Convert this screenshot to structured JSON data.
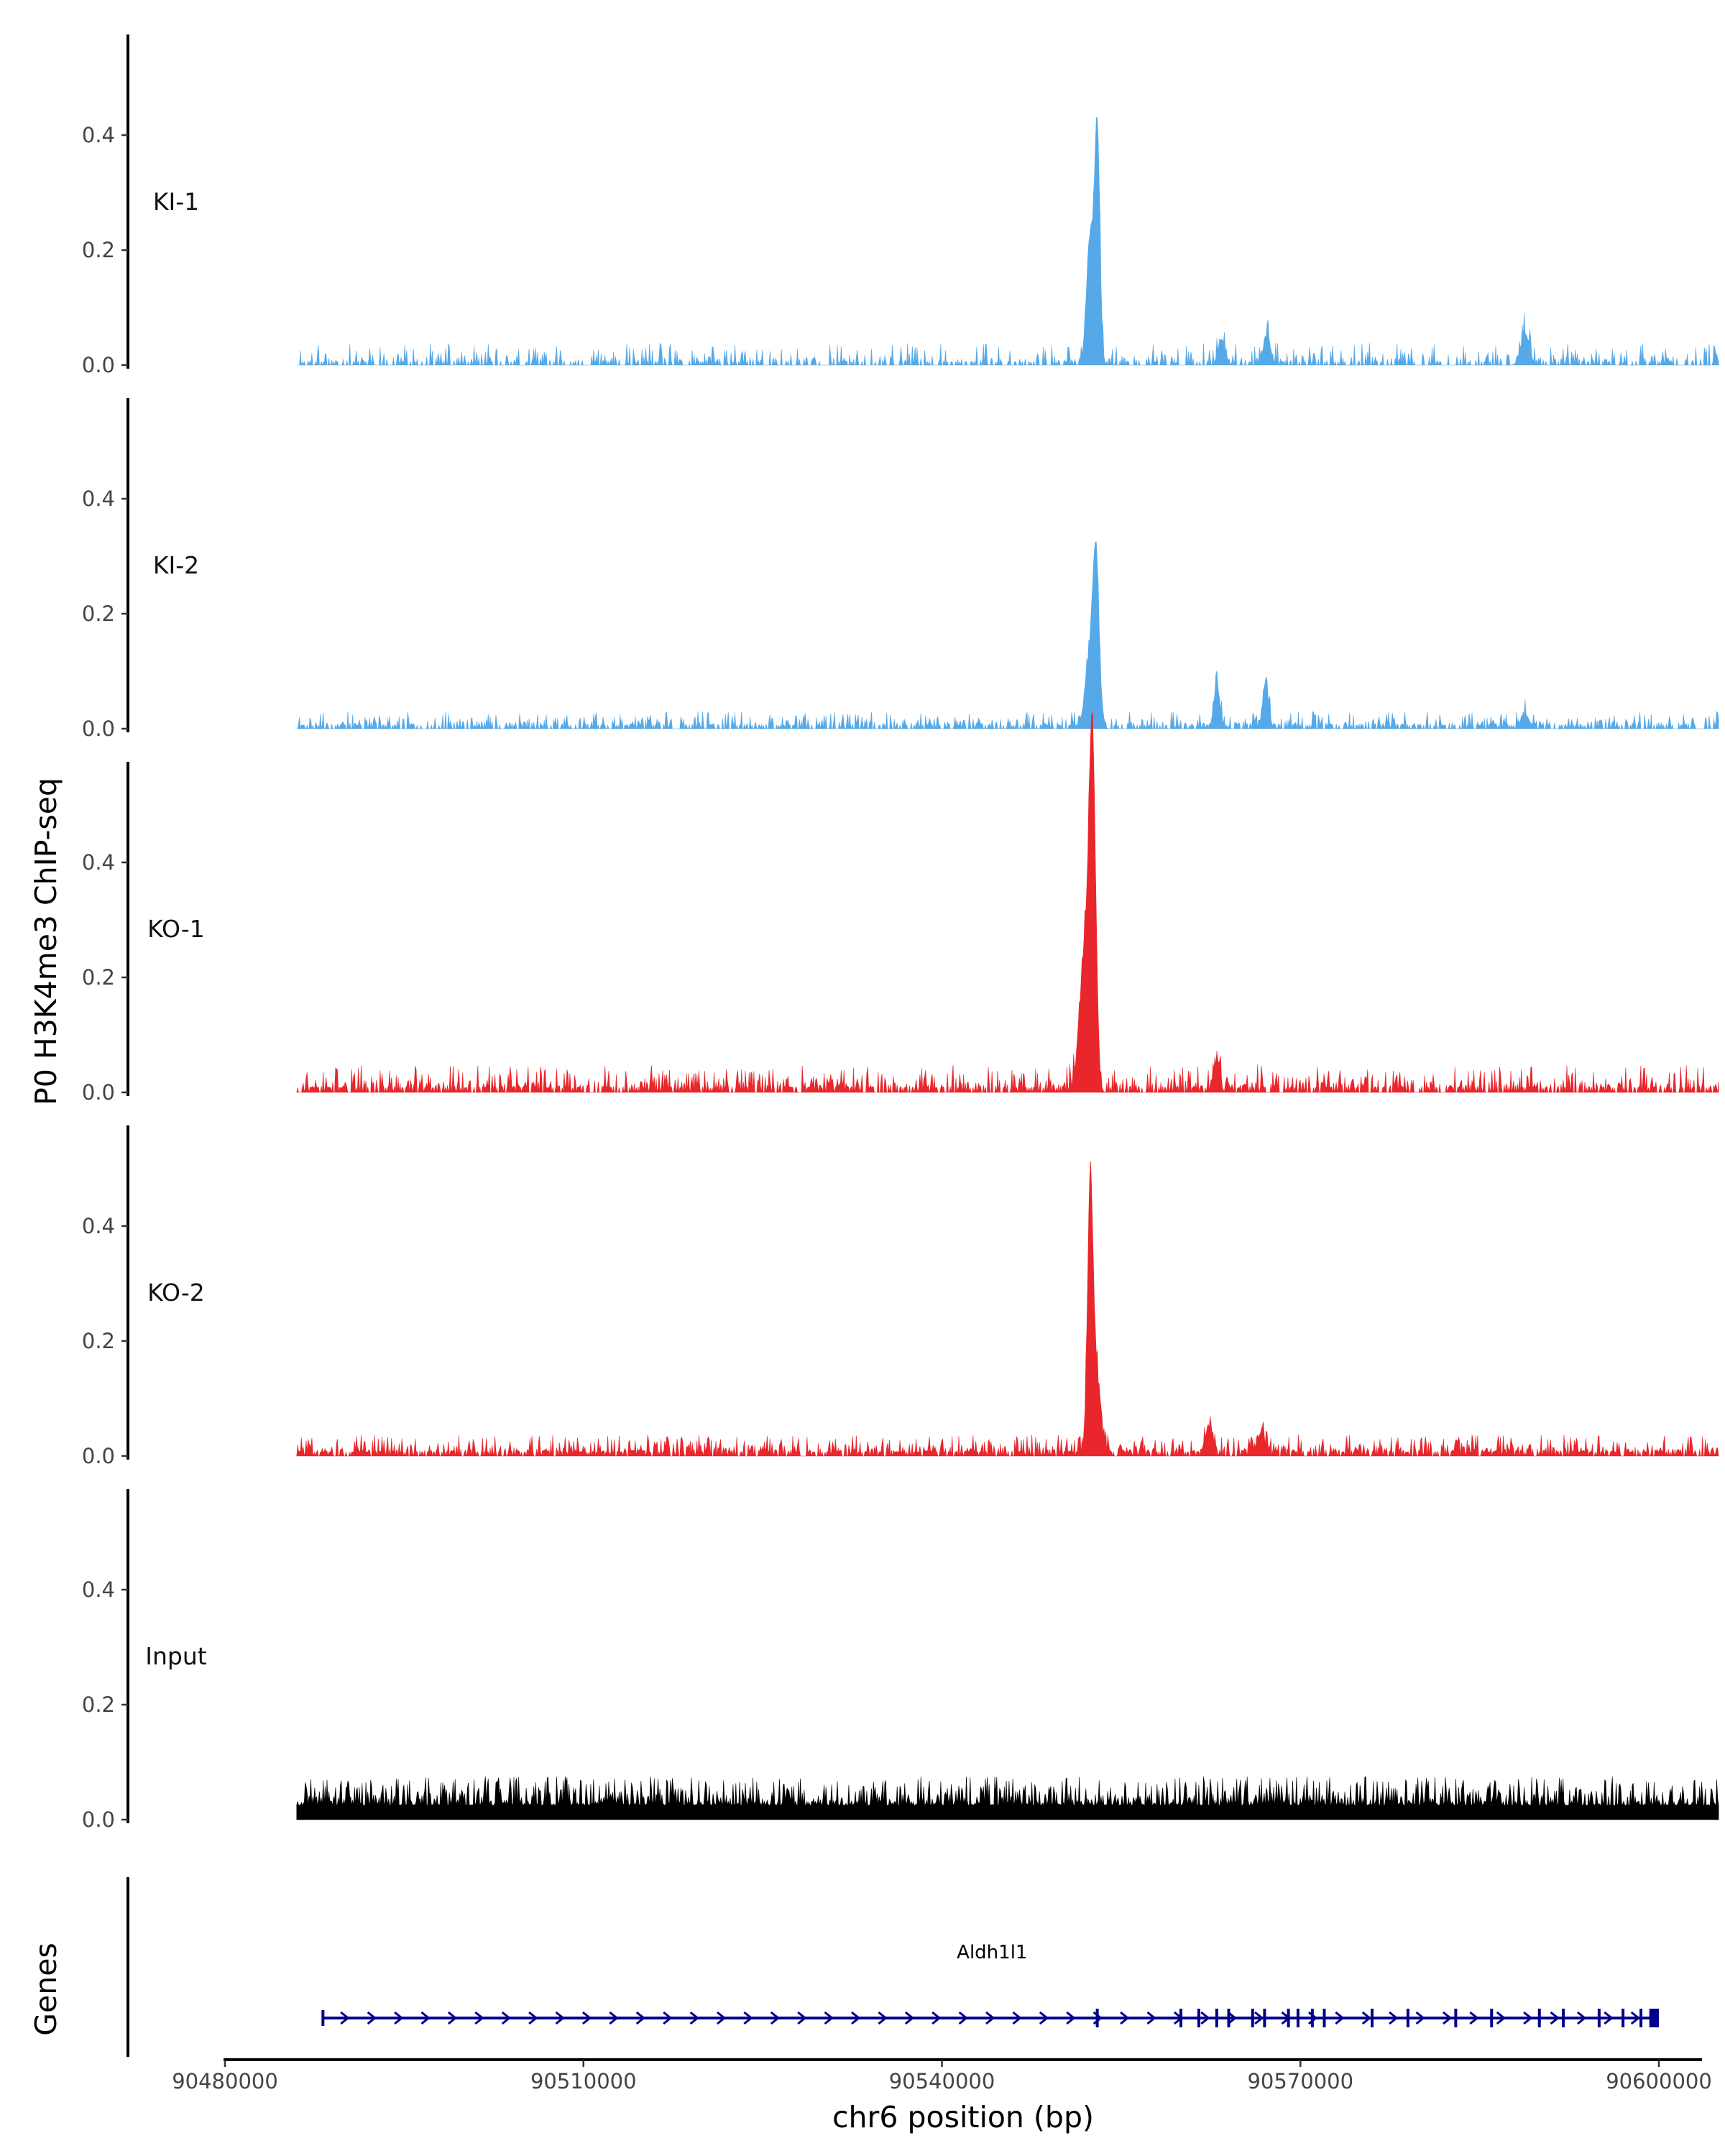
{
  "chart_data": {
    "type": "area",
    "ylabel": "P0 H3K4me3 ChIP-seq",
    "xlabel": "chr6 position (bp)",
    "ylim": [
      0,
      0.55
    ],
    "y_ticks": [
      "0.0",
      "0.2",
      "0.4"
    ],
    "xlim": [
      90480000,
      90600000
    ],
    "x_ticks": [
      "90480000",
      "90510000",
      "90540000",
      "90570000",
      "90600000"
    ],
    "tracks": [
      {
        "name": "KI-1",
        "color": "#56a9e8",
        "baseline": 0.006,
        "noise": 0.032,
        "dropout": 0.55,
        "seed": 11,
        "peaks": [
          [
            90553000,
            0.4,
            220
          ],
          [
            90552400,
            0.22,
            300
          ],
          [
            90563400,
            0.045,
            300
          ],
          [
            90567200,
            0.05,
            300
          ],
          [
            90588800,
            0.055,
            350
          ]
        ]
      },
      {
        "name": "KI-2",
        "color": "#56a9e8",
        "baseline": 0.006,
        "noise": 0.024,
        "dropout": 0.45,
        "seed": 23,
        "peaks": [
          [
            90552900,
            0.26,
            260
          ],
          [
            90552400,
            0.12,
            400
          ],
          [
            90563000,
            0.075,
            250
          ],
          [
            90567100,
            0.075,
            250
          ],
          [
            90588800,
            0.025,
            350
          ]
        ]
      },
      {
        "name": "KO-1",
        "color": "#e8262b",
        "baseline": 0.008,
        "noise": 0.04,
        "dropout": 0.35,
        "seed": 37,
        "peaks": [
          [
            90552600,
            0.54,
            270
          ],
          [
            90552000,
            0.25,
            450
          ],
          [
            90563000,
            0.05,
            250
          ]
        ]
      },
      {
        "name": "KO-2",
        "color": "#e8262b",
        "baseline": 0.007,
        "noise": 0.03,
        "dropout": 0.3,
        "seed": 51,
        "peaks": [
          [
            90552400,
            0.39,
            220
          ],
          [
            90552800,
            0.16,
            400
          ],
          [
            90562400,
            0.05,
            300
          ],
          [
            90566700,
            0.04,
            300
          ]
        ]
      },
      {
        "name": "Input",
        "color": "#000000",
        "baseline": 0.025,
        "noise": 0.05,
        "dropout": 0.0,
        "seed": 77,
        "peaks": []
      }
    ],
    "data_start": 90486000,
    "data_end": 90605000,
    "genes_track": {
      "title": "Genes",
      "gene": {
        "name": "Aldh1l1",
        "start": 90488200,
        "end": 90600000,
        "strand": "+",
        "color": "#00008b",
        "exons": [
          90553000,
          90560000,
          90561500,
          90563000,
          90564000,
          90566000,
          90567000,
          90569000,
          90569800,
          90571000,
          90572000,
          90576000,
          90579000,
          90583000,
          90586000,
          90590000,
          90592000,
          90595000,
          90597000,
          90598500
        ],
        "end_block": [
          90599200,
          90600000
        ]
      }
    }
  }
}
